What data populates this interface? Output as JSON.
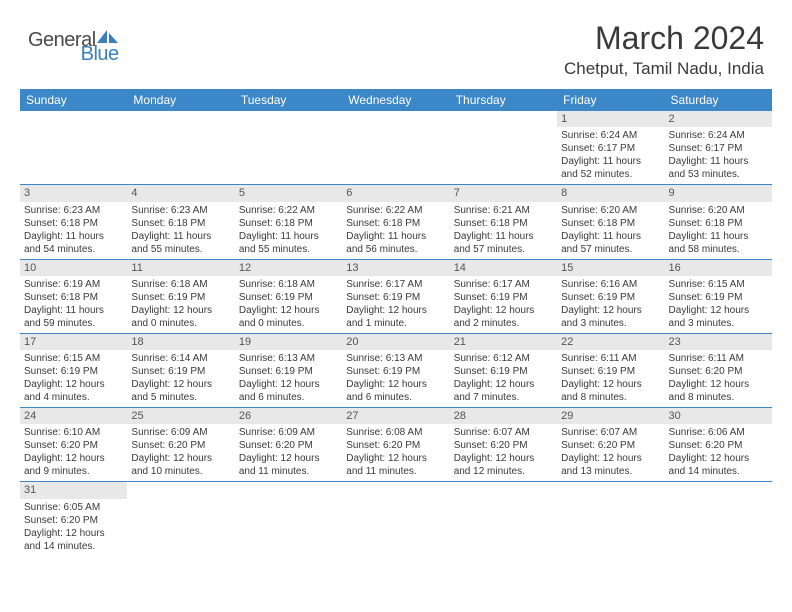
{
  "logo": {
    "general": "General",
    "blue": "Blue"
  },
  "title": "March 2024",
  "location": "Chetput, Tamil Nadu, India",
  "colors": {
    "header_bg": "#3b87c8",
    "header_text": "#ffffff",
    "daynum_bg": "#e8e8e8",
    "border": "#3b87c8",
    "body_text": "#3a3a3a"
  },
  "day_headers": [
    "Sunday",
    "Monday",
    "Tuesday",
    "Wednesday",
    "Thursday",
    "Friday",
    "Saturday"
  ],
  "weeks": [
    [
      null,
      null,
      null,
      null,
      null,
      {
        "n": "1",
        "sr": "Sunrise: 6:24 AM",
        "ss": "Sunset: 6:17 PM",
        "d1": "Daylight: 11 hours",
        "d2": "and 52 minutes."
      },
      {
        "n": "2",
        "sr": "Sunrise: 6:24 AM",
        "ss": "Sunset: 6:17 PM",
        "d1": "Daylight: 11 hours",
        "d2": "and 53 minutes."
      }
    ],
    [
      {
        "n": "3",
        "sr": "Sunrise: 6:23 AM",
        "ss": "Sunset: 6:18 PM",
        "d1": "Daylight: 11 hours",
        "d2": "and 54 minutes."
      },
      {
        "n": "4",
        "sr": "Sunrise: 6:23 AM",
        "ss": "Sunset: 6:18 PM",
        "d1": "Daylight: 11 hours",
        "d2": "and 55 minutes."
      },
      {
        "n": "5",
        "sr": "Sunrise: 6:22 AM",
        "ss": "Sunset: 6:18 PM",
        "d1": "Daylight: 11 hours",
        "d2": "and 55 minutes."
      },
      {
        "n": "6",
        "sr": "Sunrise: 6:22 AM",
        "ss": "Sunset: 6:18 PM",
        "d1": "Daylight: 11 hours",
        "d2": "and 56 minutes."
      },
      {
        "n": "7",
        "sr": "Sunrise: 6:21 AM",
        "ss": "Sunset: 6:18 PM",
        "d1": "Daylight: 11 hours",
        "d2": "and 57 minutes."
      },
      {
        "n": "8",
        "sr": "Sunrise: 6:20 AM",
        "ss": "Sunset: 6:18 PM",
        "d1": "Daylight: 11 hours",
        "d2": "and 57 minutes."
      },
      {
        "n": "9",
        "sr": "Sunrise: 6:20 AM",
        "ss": "Sunset: 6:18 PM",
        "d1": "Daylight: 11 hours",
        "d2": "and 58 minutes."
      }
    ],
    [
      {
        "n": "10",
        "sr": "Sunrise: 6:19 AM",
        "ss": "Sunset: 6:18 PM",
        "d1": "Daylight: 11 hours",
        "d2": "and 59 minutes."
      },
      {
        "n": "11",
        "sr": "Sunrise: 6:18 AM",
        "ss": "Sunset: 6:19 PM",
        "d1": "Daylight: 12 hours",
        "d2": "and 0 minutes."
      },
      {
        "n": "12",
        "sr": "Sunrise: 6:18 AM",
        "ss": "Sunset: 6:19 PM",
        "d1": "Daylight: 12 hours",
        "d2": "and 0 minutes."
      },
      {
        "n": "13",
        "sr": "Sunrise: 6:17 AM",
        "ss": "Sunset: 6:19 PM",
        "d1": "Daylight: 12 hours",
        "d2": "and 1 minute."
      },
      {
        "n": "14",
        "sr": "Sunrise: 6:17 AM",
        "ss": "Sunset: 6:19 PM",
        "d1": "Daylight: 12 hours",
        "d2": "and 2 minutes."
      },
      {
        "n": "15",
        "sr": "Sunrise: 6:16 AM",
        "ss": "Sunset: 6:19 PM",
        "d1": "Daylight: 12 hours",
        "d2": "and 3 minutes."
      },
      {
        "n": "16",
        "sr": "Sunrise: 6:15 AM",
        "ss": "Sunset: 6:19 PM",
        "d1": "Daylight: 12 hours",
        "d2": "and 3 minutes."
      }
    ],
    [
      {
        "n": "17",
        "sr": "Sunrise: 6:15 AM",
        "ss": "Sunset: 6:19 PM",
        "d1": "Daylight: 12 hours",
        "d2": "and 4 minutes."
      },
      {
        "n": "18",
        "sr": "Sunrise: 6:14 AM",
        "ss": "Sunset: 6:19 PM",
        "d1": "Daylight: 12 hours",
        "d2": "and 5 minutes."
      },
      {
        "n": "19",
        "sr": "Sunrise: 6:13 AM",
        "ss": "Sunset: 6:19 PM",
        "d1": "Daylight: 12 hours",
        "d2": "and 6 minutes."
      },
      {
        "n": "20",
        "sr": "Sunrise: 6:13 AM",
        "ss": "Sunset: 6:19 PM",
        "d1": "Daylight: 12 hours",
        "d2": "and 6 minutes."
      },
      {
        "n": "21",
        "sr": "Sunrise: 6:12 AM",
        "ss": "Sunset: 6:19 PM",
        "d1": "Daylight: 12 hours",
        "d2": "and 7 minutes."
      },
      {
        "n": "22",
        "sr": "Sunrise: 6:11 AM",
        "ss": "Sunset: 6:19 PM",
        "d1": "Daylight: 12 hours",
        "d2": "and 8 minutes."
      },
      {
        "n": "23",
        "sr": "Sunrise: 6:11 AM",
        "ss": "Sunset: 6:20 PM",
        "d1": "Daylight: 12 hours",
        "d2": "and 8 minutes."
      }
    ],
    [
      {
        "n": "24",
        "sr": "Sunrise: 6:10 AM",
        "ss": "Sunset: 6:20 PM",
        "d1": "Daylight: 12 hours",
        "d2": "and 9 minutes."
      },
      {
        "n": "25",
        "sr": "Sunrise: 6:09 AM",
        "ss": "Sunset: 6:20 PM",
        "d1": "Daylight: 12 hours",
        "d2": "and 10 minutes."
      },
      {
        "n": "26",
        "sr": "Sunrise: 6:09 AM",
        "ss": "Sunset: 6:20 PM",
        "d1": "Daylight: 12 hours",
        "d2": "and 11 minutes."
      },
      {
        "n": "27",
        "sr": "Sunrise: 6:08 AM",
        "ss": "Sunset: 6:20 PM",
        "d1": "Daylight: 12 hours",
        "d2": "and 11 minutes."
      },
      {
        "n": "28",
        "sr": "Sunrise: 6:07 AM",
        "ss": "Sunset: 6:20 PM",
        "d1": "Daylight: 12 hours",
        "d2": "and 12 minutes."
      },
      {
        "n": "29",
        "sr": "Sunrise: 6:07 AM",
        "ss": "Sunset: 6:20 PM",
        "d1": "Daylight: 12 hours",
        "d2": "and 13 minutes."
      },
      {
        "n": "30",
        "sr": "Sunrise: 6:06 AM",
        "ss": "Sunset: 6:20 PM",
        "d1": "Daylight: 12 hours",
        "d2": "and 14 minutes."
      }
    ],
    [
      {
        "n": "31",
        "sr": "Sunrise: 6:05 AM",
        "ss": "Sunset: 6:20 PM",
        "d1": "Daylight: 12 hours",
        "d2": "and 14 minutes."
      },
      null,
      null,
      null,
      null,
      null,
      null
    ]
  ]
}
